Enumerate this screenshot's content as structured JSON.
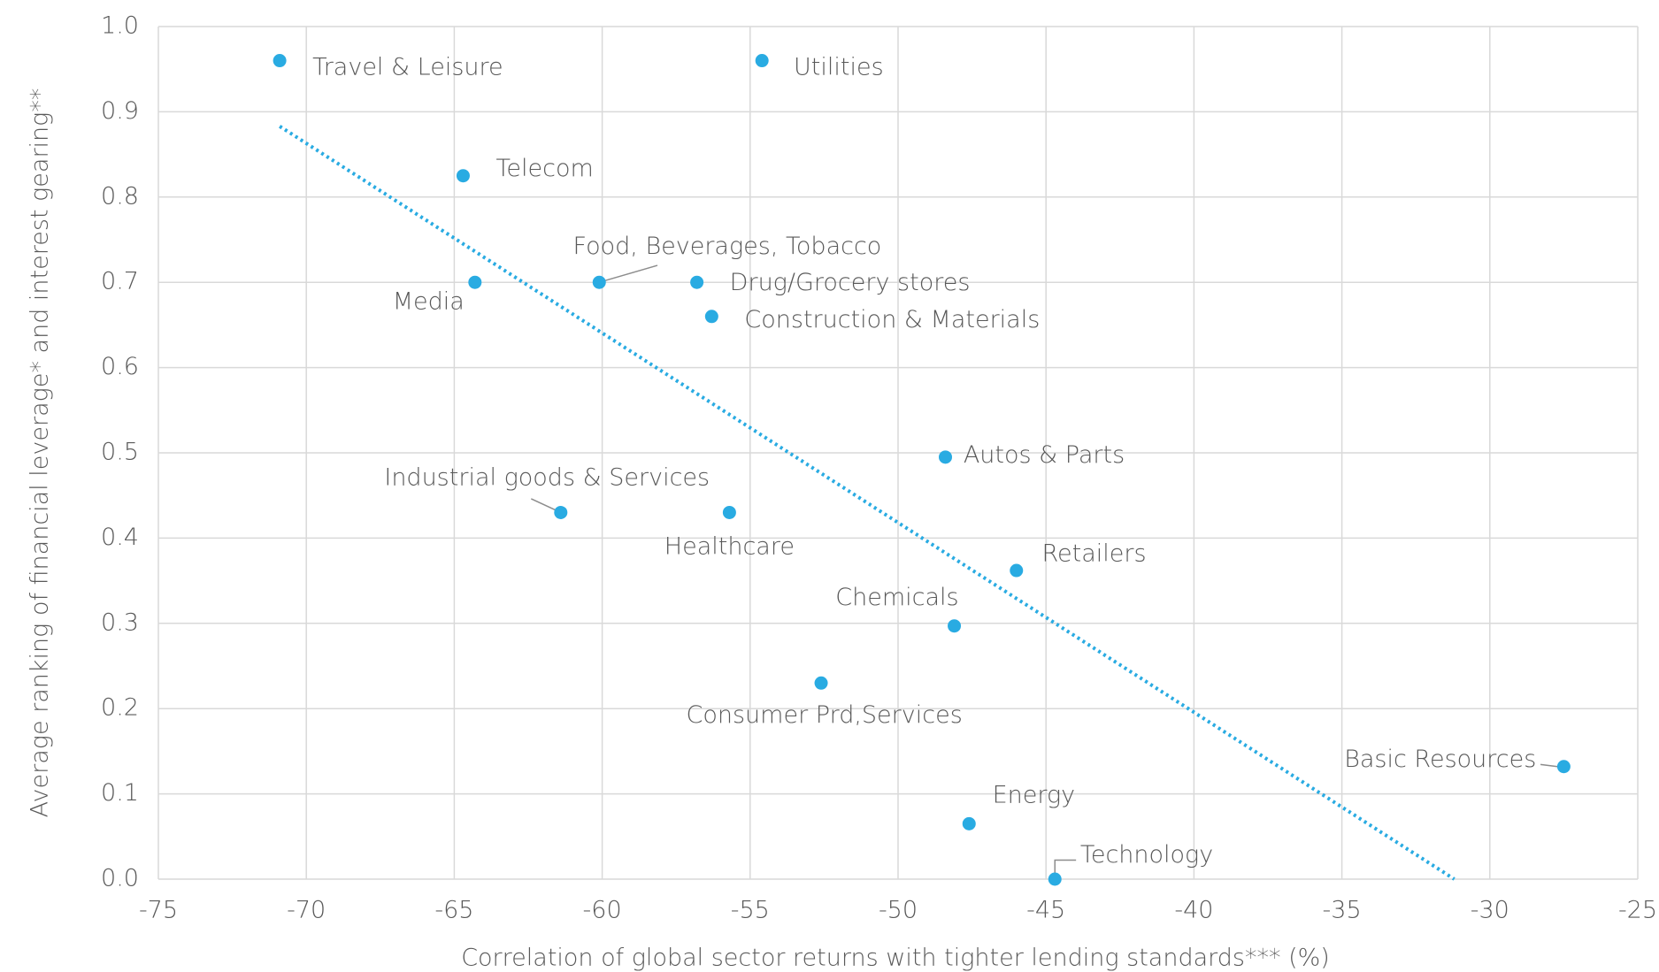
{
  "chart_data": {
    "type": "scatter",
    "xlabel": "Correlation of global sector returns with tighter lending standards*** (%)",
    "ylabel": "Average ranking of financial leverage* and interest gearing**",
    "labels": [
      "Travel & Leisure",
      "Utilities",
      "Telecom",
      "Media",
      "Food, Beverages, Tobacco",
      "Drug/Grocery stores",
      "Construction & Materials",
      "Autos & Parts",
      "Industrial goods & Services",
      "Healthcare",
      "Retailers",
      "Chemicals",
      "Consumer Prd,Services",
      "Basic Resources",
      "Energy",
      "Technology"
    ],
    "x": [
      -70.9,
      -54.6,
      -64.7,
      -64.3,
      -60.1,
      -56.8,
      -56.3,
      -48.4,
      -61.4,
      -55.7,
      -46.0,
      -48.1,
      -52.6,
      -27.5,
      -47.6,
      -44.7
    ],
    "values": [
      0.96,
      0.96,
      0.825,
      0.7,
      0.7,
      0.7,
      0.66,
      0.495,
      0.43,
      0.43,
      0.362,
      0.297,
      0.23,
      0.132,
      0.065,
      0.0
    ],
    "color": "#29abe2",
    "trendline": {
      "x": [
        -70.9,
        -31.2
      ],
      "values": [
        0.883,
        0.0
      ],
      "color": "#29abe2"
    },
    "xlim": [
      -75,
      -25
    ],
    "xticks": [
      -75,
      -70,
      -65,
      -60,
      -55,
      -50,
      -45,
      -40,
      -35,
      -30,
      -25
    ],
    "ylim": [
      0,
      1
    ],
    "yticks": [
      {
        "value": 0,
        "label": "0.0"
      },
      0.1,
      0.2,
      0.3,
      0.4,
      0.5,
      0.6,
      0.7,
      0.8,
      0.9,
      {
        "value": 1,
        "label": "1.0"
      }
    ],
    "grid": true
  }
}
